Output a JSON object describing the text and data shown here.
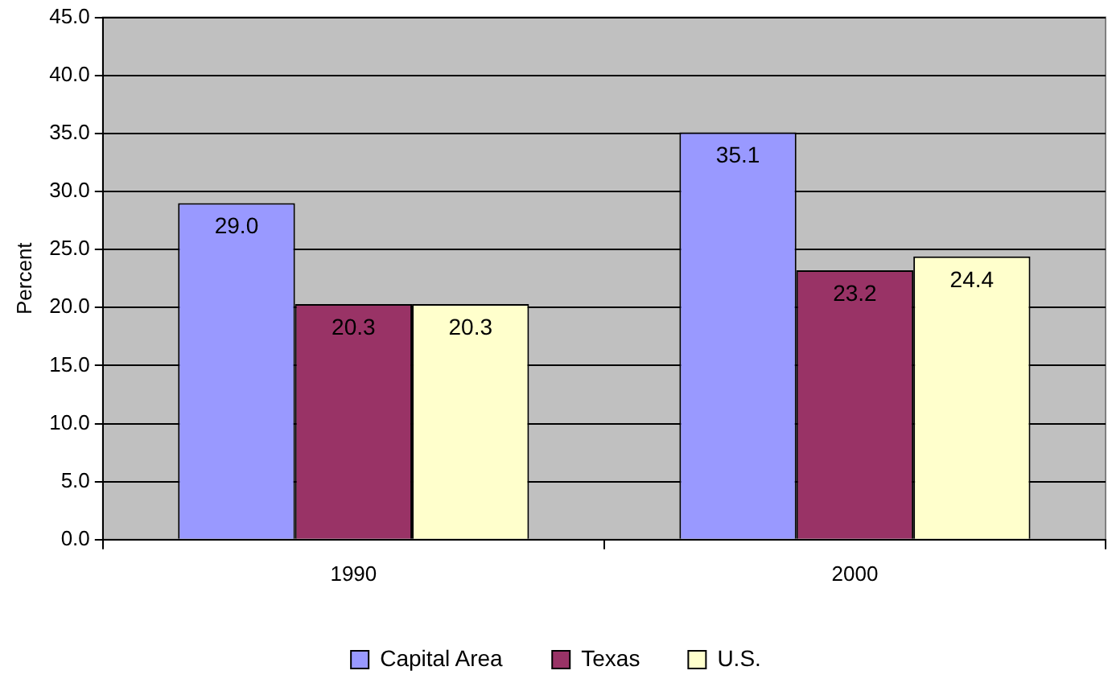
{
  "chart_data": {
    "type": "bar",
    "ylabel": "Percent",
    "categories": [
      "1990",
      "2000"
    ],
    "series": [
      {
        "name": "Capital Area",
        "color": "#9999ff",
        "values": [
          29.0,
          35.1
        ],
        "value_labels": [
          "29.0",
          "35.1"
        ]
      },
      {
        "name": "Texas",
        "color": "#993366",
        "values": [
          20.3,
          23.2
        ],
        "value_labels": [
          "20.3",
          "23.2"
        ]
      },
      {
        "name": "U.S.",
        "color": "#ffffcc",
        "values": [
          20.3,
          24.4
        ],
        "value_labels": [
          "20.3",
          "24.4"
        ]
      }
    ],
    "ylim": [
      0,
      45
    ],
    "yticks": [
      {
        "value": 0,
        "label": "0.0"
      },
      {
        "value": 5,
        "label": "5.0"
      },
      {
        "value": 10,
        "label": "10.0"
      },
      {
        "value": 15,
        "label": "15.0"
      },
      {
        "value": 20,
        "label": "20.0"
      },
      {
        "value": 25,
        "label": "25.0"
      },
      {
        "value": 30,
        "label": "30.0"
      },
      {
        "value": 35,
        "label": "35.0"
      },
      {
        "value": 40,
        "label": "40.0"
      },
      {
        "value": 45,
        "label": "45.0"
      }
    ],
    "grid": "y",
    "legend": "bottom"
  }
}
